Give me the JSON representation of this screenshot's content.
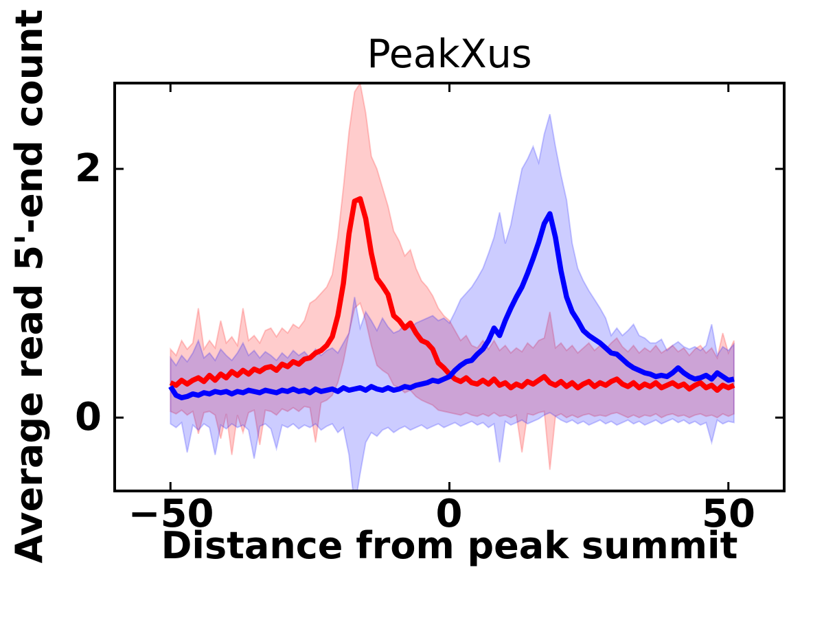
{
  "figure": {
    "background_color": "#ffffff",
    "text_color": "#000000"
  },
  "chart_data": {
    "type": "line",
    "title": "PeakXus",
    "xlabel": "Distance from peak summit",
    "ylabel": "Average read 5'-end count",
    "grid": false,
    "legend_position": "none",
    "xlim": [
      -60,
      60
    ],
    "ylim": [
      -0.59,
      2.69
    ],
    "xticks": {
      "values": [
        -50,
        0,
        50
      ],
      "labels": [
        "−50",
        "0",
        "50"
      ]
    },
    "yticks": {
      "values": [
        0,
        2
      ],
      "labels": [
        "0",
        "2"
      ]
    },
    "x": [
      -50,
      -49,
      -48,
      -47,
      -46,
      -45,
      -44,
      -43,
      -42,
      -41,
      -40,
      -39,
      -38,
      -37,
      -36,
      -35,
      -34,
      -33,
      -32,
      -31,
      -30,
      -29,
      -28,
      -27,
      -26,
      -25,
      -24,
      -23,
      -22,
      -21,
      -20,
      -19,
      -18,
      -17,
      -16,
      -15,
      -14,
      -13,
      -12,
      -11,
      -10,
      -9,
      -8,
      -7,
      -6,
      -5,
      -4,
      -3,
      -2,
      -1,
      0,
      1,
      2,
      3,
      4,
      5,
      6,
      7,
      8,
      9,
      10,
      11,
      12,
      13,
      14,
      15,
      16,
      17,
      18,
      19,
      20,
      21,
      22,
      23,
      24,
      25,
      26,
      27,
      28,
      29,
      30,
      31,
      32,
      33,
      34,
      35,
      36,
      37,
      38,
      39,
      40,
      41,
      42,
      43,
      44,
      45,
      46,
      47,
      48,
      49,
      50,
      51
    ],
    "series": [
      {
        "name": "red",
        "line_color": "#ff0000",
        "band_fill_color": "#ff0000",
        "band_fill_alpha": 0.2,
        "peak_x": -16,
        "peak_value": 1.76,
        "values": [
          0.28,
          0.26,
          0.3,
          0.27,
          0.3,
          0.32,
          0.29,
          0.34,
          0.3,
          0.35,
          0.32,
          0.37,
          0.34,
          0.38,
          0.35,
          0.39,
          0.37,
          0.4,
          0.41,
          0.38,
          0.43,
          0.41,
          0.45,
          0.43,
          0.47,
          0.48,
          0.52,
          0.54,
          0.58,
          0.65,
          0.82,
          1.08,
          1.48,
          1.74,
          1.76,
          1.6,
          1.32,
          1.12,
          1.06,
          0.99,
          0.82,
          0.78,
          0.72,
          0.76,
          0.68,
          0.62,
          0.6,
          0.55,
          0.44,
          0.4,
          0.35,
          0.31,
          0.29,
          0.32,
          0.28,
          0.27,
          0.3,
          0.27,
          0.31,
          0.26,
          0.28,
          0.24,
          0.27,
          0.25,
          0.29,
          0.27,
          0.3,
          0.33,
          0.28,
          0.26,
          0.29,
          0.25,
          0.28,
          0.24,
          0.27,
          0.29,
          0.25,
          0.28,
          0.26,
          0.29,
          0.31,
          0.27,
          0.25,
          0.28,
          0.24,
          0.27,
          0.25,
          0.28,
          0.24,
          0.26,
          0.28,
          0.25,
          0.27,
          0.23,
          0.26,
          0.28,
          0.24,
          0.26,
          0.22,
          0.26,
          0.24,
          0.26
        ],
        "band_upper": [
          0.55,
          0.5,
          0.62,
          0.55,
          0.6,
          0.88,
          0.55,
          0.62,
          0.56,
          0.78,
          0.6,
          0.65,
          0.58,
          0.88,
          0.62,
          0.66,
          0.6,
          0.7,
          0.72,
          0.65,
          0.72,
          0.68,
          0.75,
          0.72,
          0.78,
          0.92,
          0.95,
          1.0,
          1.05,
          1.15,
          1.45,
          1.85,
          2.3,
          2.62,
          2.69,
          2.45,
          2.1,
          2.0,
          1.85,
          1.7,
          1.5,
          1.42,
          1.3,
          1.35,
          1.2,
          1.1,
          1.05,
          0.98,
          0.88,
          0.82,
          0.78,
          0.7,
          0.62,
          0.66,
          0.58,
          0.56,
          0.62,
          0.55,
          0.62,
          0.54,
          0.58,
          0.52,
          0.56,
          0.53,
          0.6,
          0.56,
          0.62,
          0.64,
          0.85,
          0.56,
          0.6,
          0.54,
          0.58,
          0.52,
          0.56,
          0.6,
          0.54,
          0.58,
          0.55,
          0.6,
          0.64,
          0.57,
          0.53,
          0.58,
          0.52,
          0.56,
          0.53,
          0.58,
          0.52,
          0.55,
          0.58,
          0.53,
          0.56,
          0.5,
          0.55,
          0.58,
          0.52,
          0.56,
          0.48,
          0.68,
          0.52,
          0.62
        ],
        "band_lower": [
          0.05,
          0.03,
          0.06,
          0.02,
          0.05,
          -0.13,
          0.04,
          0.05,
          0.02,
          -0.17,
          0.03,
          -0.3,
          0.02,
          -0.12,
          0.04,
          0.06,
          -0.22,
          0.06,
          0.05,
          0.02,
          0.07,
          0.05,
          0.08,
          0.05,
          0.09,
          0.08,
          -0.2,
          0.12,
          0.14,
          0.18,
          0.28,
          0.45,
          0.68,
          0.88,
          0.92,
          0.78,
          0.58,
          0.42,
          0.38,
          0.35,
          0.26,
          0.24,
          0.2,
          0.22,
          0.17,
          0.14,
          0.12,
          0.1,
          0.06,
          0.05,
          0.04,
          0.03,
          0.02,
          0.04,
          0.02,
          0.01,
          0.03,
          0.01,
          0.04,
          0.01,
          0.02,
          0.0,
          0.02,
          -0.28,
          0.03,
          0.02,
          0.04,
          0.05,
          -0.42,
          0.01,
          0.03,
          0.0,
          0.02,
          0.0,
          0.02,
          0.03,
          0.01,
          0.02,
          0.01,
          0.03,
          0.04,
          0.02,
          0.0,
          0.02,
          0.0,
          0.02,
          0.01,
          0.03,
          0.0,
          0.02,
          0.03,
          0.01,
          0.02,
          0.0,
          0.02,
          0.03,
          0.01,
          0.02,
          0.0,
          0.03,
          0.01,
          0.03
        ]
      },
      {
        "name": "blue",
        "line_color": "#0000ff",
        "band_fill_color": "#0000ff",
        "band_fill_alpha": 0.2,
        "peak_x": 18,
        "peak_value": 1.64,
        "values": [
          0.25,
          0.18,
          0.16,
          0.17,
          0.19,
          0.18,
          0.2,
          0.19,
          0.21,
          0.2,
          0.21,
          0.19,
          0.21,
          0.2,
          0.22,
          0.21,
          0.2,
          0.22,
          0.21,
          0.2,
          0.22,
          0.21,
          0.23,
          0.21,
          0.22,
          0.2,
          0.23,
          0.21,
          0.22,
          0.23,
          0.21,
          0.24,
          0.22,
          0.23,
          0.24,
          0.22,
          0.25,
          0.23,
          0.22,
          0.24,
          0.22,
          0.23,
          0.25,
          0.24,
          0.26,
          0.27,
          0.28,
          0.3,
          0.29,
          0.31,
          0.33,
          0.38,
          0.42,
          0.45,
          0.46,
          0.51,
          0.55,
          0.62,
          0.72,
          0.66,
          0.78,
          0.88,
          0.97,
          1.05,
          1.16,
          1.28,
          1.41,
          1.56,
          1.64,
          1.45,
          1.18,
          0.97,
          0.85,
          0.78,
          0.7,
          0.66,
          0.63,
          0.6,
          0.56,
          0.52,
          0.51,
          0.47,
          0.43,
          0.4,
          0.38,
          0.36,
          0.35,
          0.33,
          0.34,
          0.33,
          0.36,
          0.4,
          0.36,
          0.33,
          0.31,
          0.32,
          0.34,
          0.31,
          0.36,
          0.33,
          0.3,
          0.31
        ],
        "band_upper": [
          0.48,
          0.42,
          0.5,
          0.45,
          0.52,
          0.62,
          0.48,
          0.52,
          0.46,
          0.55,
          0.5,
          0.46,
          0.52,
          0.6,
          0.5,
          0.54,
          0.48,
          0.53,
          0.5,
          0.46,
          0.52,
          0.48,
          0.54,
          0.5,
          0.53,
          0.48,
          0.55,
          0.5,
          0.54,
          0.56,
          0.52,
          0.6,
          0.68,
          0.97,
          0.72,
          0.85,
          0.78,
          0.7,
          0.8,
          0.73,
          0.68,
          0.7,
          0.75,
          0.72,
          0.76,
          0.78,
          0.8,
          0.82,
          0.78,
          0.8,
          0.76,
          0.85,
          0.95,
          1.0,
          1.05,
          1.12,
          1.2,
          1.32,
          1.45,
          1.65,
          1.4,
          1.55,
          1.78,
          2.0,
          2.08,
          2.18,
          2.05,
          2.28,
          2.44,
          2.18,
          1.95,
          1.75,
          1.4,
          1.2,
          1.1,
          1.02,
          0.95,
          0.88,
          0.8,
          0.66,
          0.72,
          0.66,
          0.7,
          0.75,
          0.66,
          0.64,
          0.6,
          0.6,
          0.63,
          0.54,
          0.58,
          0.61,
          0.57,
          0.55,
          0.57,
          0.54,
          0.58,
          0.75,
          0.5,
          0.57,
          0.54,
          0.59
        ],
        "band_lower": [
          -0.05,
          -0.08,
          -0.04,
          -0.28,
          -0.06,
          -0.1,
          -0.05,
          -0.08,
          -0.3,
          -0.06,
          -0.09,
          -0.05,
          -0.08,
          -0.06,
          -0.1,
          -0.33,
          -0.07,
          -0.05,
          -0.09,
          -0.25,
          -0.06,
          -0.08,
          -0.05,
          -0.09,
          -0.06,
          -0.08,
          -0.05,
          -0.1,
          -0.07,
          -0.05,
          -0.12,
          -0.08,
          -0.3,
          -0.72,
          -0.45,
          -0.2,
          -0.12,
          -0.15,
          -0.1,
          -0.08,
          -0.12,
          -0.09,
          -0.07,
          -0.1,
          -0.08,
          -0.06,
          -0.09,
          -0.07,
          -0.05,
          -0.08,
          -0.06,
          -0.04,
          -0.07,
          -0.05,
          -0.03,
          -0.06,
          -0.04,
          -0.08,
          -0.05,
          -0.36,
          -0.03,
          -0.06,
          -0.04,
          -0.02,
          -0.05,
          -0.03,
          -0.01,
          0.02,
          0.04,
          0.01,
          -0.02,
          -0.04,
          -0.02,
          -0.05,
          -0.03,
          -0.06,
          -0.04,
          -0.02,
          -0.05,
          -0.03,
          -0.06,
          -0.04,
          -0.02,
          -0.05,
          -0.03,
          -0.06,
          -0.04,
          -0.02,
          -0.05,
          -0.03,
          -0.01,
          -0.04,
          -0.02,
          -0.05,
          -0.03,
          -0.06,
          -0.04,
          -0.2,
          -0.02,
          -0.05,
          -0.03,
          -0.04
        ]
      }
    ]
  }
}
